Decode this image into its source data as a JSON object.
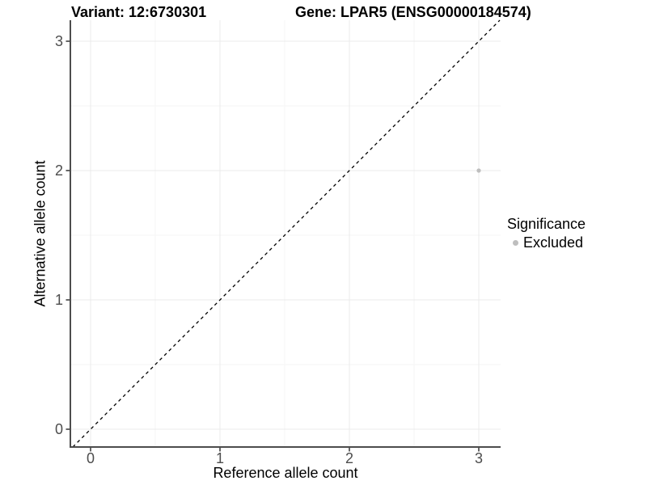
{
  "chart_data": {
    "type": "scatter",
    "title_left": "Variant: 12:6730301",
    "title_right": "Gene: LPAR5 (ENSG00000184574)",
    "xlabel": "Reference allele count",
    "ylabel": "Alternative allele count",
    "x_tick_values": [
      0,
      1,
      2,
      3
    ],
    "x_tick_labels": [
      "0",
      "1",
      "2",
      "3"
    ],
    "y_tick_values": [
      0,
      1,
      2,
      3
    ],
    "y_tick_labels": [
      "0",
      "1",
      "2",
      "3"
    ],
    "x_minor_values": [
      0.5,
      1.5,
      2.5
    ],
    "y_minor_values": [
      0.5,
      1.5,
      2.5
    ],
    "xlim": [
      -0.16,
      3.17
    ],
    "ylim": [
      -0.14,
      3.16
    ],
    "grid": true,
    "points": [
      {
        "x": 3,
        "y": 2,
        "significance": "Excluded"
      }
    ],
    "reference_line": {
      "type": "identity y=x",
      "style": "dashed",
      "color": "#000000"
    },
    "legend": {
      "title": "Significance",
      "position": "right",
      "entries": [
        {
          "label": "Excluded",
          "color": "#bebebe"
        }
      ]
    },
    "colors": {
      "point_excluded": "#bebebe",
      "grid_major": "#ebebeb",
      "grid_minor": "#f5f5f5",
      "axis_line": "#4d4d4d",
      "tick_mark": "#333333",
      "tick_label": "#4d4d4d",
      "dashed_line": "#000000",
      "background": "#ffffff"
    }
  }
}
